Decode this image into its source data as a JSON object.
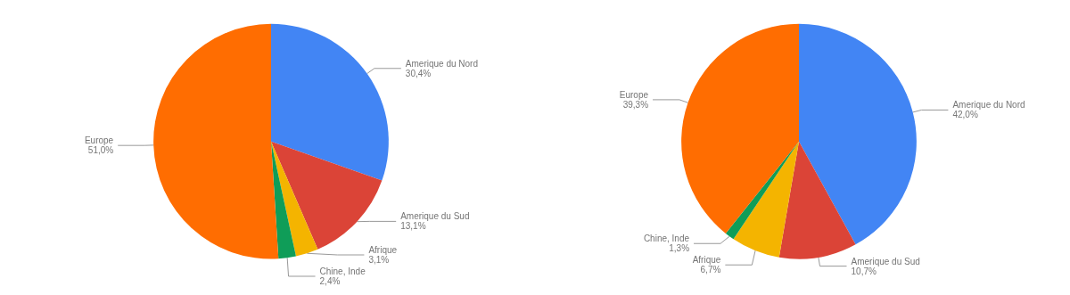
{
  "chart_data": [
    {
      "type": "pie",
      "categories": [
        "Amerique du Nord",
        "Amerique du Sud",
        "Afrique",
        "Chine, Inde",
        "Europe"
      ],
      "values": [
        30.4,
        13.1,
        3.1,
        2.4,
        51.0
      ],
      "value_labels": [
        "30,4%",
        "13,1%",
        "3,1%",
        "2,4%",
        "51,0%"
      ],
      "colors": [
        "#4285f4",
        "#db4437",
        "#f4b400",
        "#0f9d58",
        "#ff6d01"
      ],
      "legend": false
    },
    {
      "type": "pie",
      "categories": [
        "Amerique du Nord",
        "Amerique du Sud",
        "Afrique",
        "Chine, Inde",
        "Europe"
      ],
      "values": [
        42.0,
        10.7,
        6.7,
        1.3,
        39.3
      ],
      "value_labels": [
        "42,0%",
        "10,7%",
        "6,7%",
        "1,3%",
        "39,3%"
      ],
      "colors": [
        "#4285f4",
        "#db4437",
        "#f4b400",
        "#0f9d58",
        "#ff6d01"
      ],
      "legend": false
    }
  ]
}
